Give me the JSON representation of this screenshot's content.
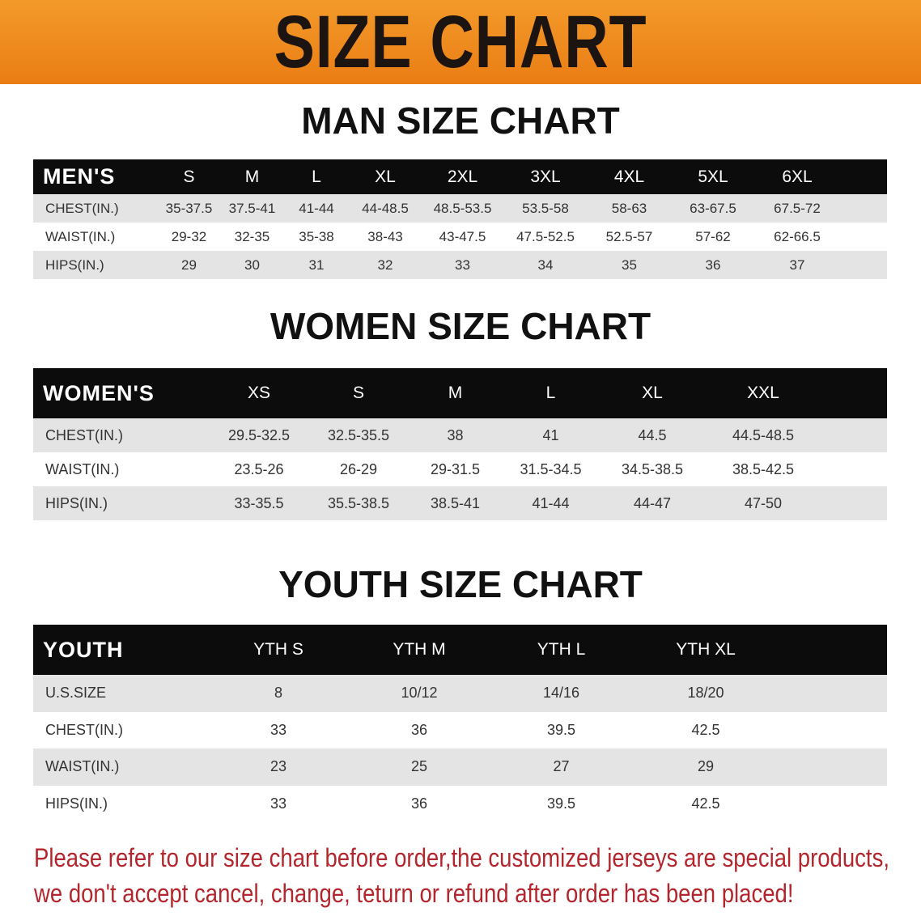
{
  "banner": {
    "title": "SIZE CHART",
    "color": "#ee8a1f"
  },
  "men": {
    "title": "MAN SIZE CHART",
    "header": [
      "MEN'S",
      "S",
      "M",
      "L",
      "XL",
      "2XL",
      "3XL",
      "4XL",
      "5XL",
      "6XL"
    ],
    "rows": [
      [
        "CHEST(IN.)",
        "35-37.5",
        "37.5-41",
        "41-44",
        "44-48.5",
        "48.5-53.5",
        "53.5-58",
        "58-63",
        "63-67.5",
        "67.5-72"
      ],
      [
        "WAIST(IN.)",
        "29-32",
        "32-35",
        "35-38",
        "38-43",
        "43-47.5",
        "47.5-52.5",
        "52.5-57",
        "57-62",
        "62-66.5"
      ],
      [
        "HIPS(IN.)",
        "29",
        "30",
        "31",
        "32",
        "33",
        "34",
        "35",
        "36",
        "37"
      ]
    ]
  },
  "women": {
    "title": "WOMEN SIZE CHART",
    "header": [
      "WOMEN'S",
      "XS",
      "S",
      "M",
      "L",
      "XL",
      "XXL"
    ],
    "rows": [
      [
        "CHEST(IN.)",
        "29.5-32.5",
        "32.5-35.5",
        "38",
        "41",
        "44.5",
        "44.5-48.5"
      ],
      [
        "WAIST(IN.)",
        "23.5-26",
        "26-29",
        "29-31.5",
        "31.5-34.5",
        "34.5-38.5",
        "38.5-42.5"
      ],
      [
        "HIPS(IN.)",
        "33-35.5",
        "35.5-38.5",
        "38.5-41",
        "41-44",
        "44-47",
        "47-50"
      ]
    ]
  },
  "youth": {
    "title": "YOUTH SIZE CHART",
    "header": [
      "YOUTH",
      "YTH S",
      "YTH M",
      "YTH L",
      "YTH XL"
    ],
    "rows": [
      [
        "U.S.SIZE",
        "8",
        "10/12",
        "14/16",
        "18/20"
      ],
      [
        "CHEST(IN.)",
        "33",
        "36",
        "39.5",
        "42.5"
      ],
      [
        "WAIST(IN.)",
        "23",
        "25",
        "27",
        "29"
      ],
      [
        "HIPS(IN.)",
        "33",
        "36",
        "39.5",
        "42.5"
      ]
    ]
  },
  "notice": {
    "line1": "Please refer to our size chart before order,the customized jerseys are special products,",
    "line2": "we don't accept cancel, change, teturn or refund after order has been placed!",
    "color": "#b3262d"
  }
}
